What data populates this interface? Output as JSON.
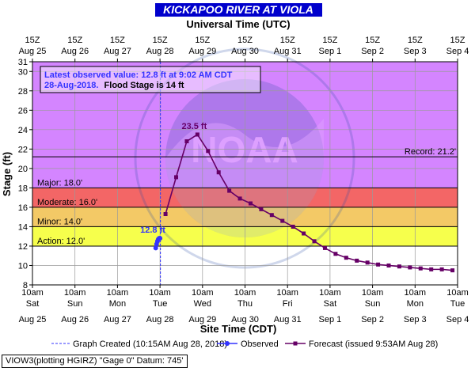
{
  "chart_data": {
    "type": "line",
    "title": "KICKAPOO RIVER AT VIOLA",
    "top_axis_label": "Universal Time (UTC)",
    "xlabel": "Site Time (CDT)",
    "ylabel": "Stage (ft)",
    "ylim": [
      8,
      31
    ],
    "y_ticks": [
      8,
      10,
      12,
      14,
      16,
      18,
      20,
      22,
      24,
      26,
      28,
      30,
      31
    ],
    "x_days": [
      {
        "time": "10am",
        "weekday": "Sat",
        "date": "Aug 25",
        "utc": "15Z",
        "utc_date": "Aug 25"
      },
      {
        "time": "10am",
        "weekday": "Sun",
        "date": "Aug 26",
        "utc": "15Z",
        "utc_date": "Aug 26"
      },
      {
        "time": "10am",
        "weekday": "Mon",
        "date": "Aug 27",
        "utc": "15Z",
        "utc_date": "Aug 27"
      },
      {
        "time": "10am",
        "weekday": "Tue",
        "date": "Aug 28",
        "utc": "15Z",
        "utc_date": "Aug 28"
      },
      {
        "time": "10am",
        "weekday": "Wed",
        "date": "Aug 29",
        "utc": "15Z",
        "utc_date": "Aug 29"
      },
      {
        "time": "10am",
        "weekday": "Thu",
        "date": "Aug 30",
        "utc": "15Z",
        "utc_date": "Aug 30"
      },
      {
        "time": "10am",
        "weekday": "Fri",
        "date": "Aug 31",
        "utc": "15Z",
        "utc_date": "Aug 31"
      },
      {
        "time": "10am",
        "weekday": "Sat",
        "date": "Sep 1",
        "utc": "15Z",
        "utc_date": "Sep 1"
      },
      {
        "time": "10am",
        "weekday": "Sun",
        "date": "Sep 2",
        "utc": "15Z",
        "utc_date": "Sep 2"
      },
      {
        "time": "10am",
        "weekday": "Mon",
        "date": "Sep 3",
        "utc": "15Z",
        "utc_date": "Sep 3"
      },
      {
        "time": "10am",
        "weekday": "Tue",
        "date": "Sep 4",
        "utc": "15Z",
        "utc_date": "Sep 4"
      }
    ],
    "thresholds": [
      {
        "name": "Action",
        "label": "Action: 12.0'",
        "value": 12.0,
        "color": "#ffff00"
      },
      {
        "name": "Minor",
        "label": "Minor: 14.0'",
        "value": 14.0,
        "color": "#ffa500"
      },
      {
        "name": "Moderate",
        "label": "Moderate: 16.0'",
        "value": 16.0,
        "color": "#ff0000"
      },
      {
        "name": "Major",
        "label": "Major: 18.0'",
        "value": 18.0,
        "color": "#cc33ff"
      },
      {
        "name": "Record",
        "label": "Record: 21.2'",
        "value": 21.2
      }
    ],
    "graph_created_day": 3.01,
    "series": [
      {
        "name": "Observed",
        "color": "#3333ff",
        "peak_label": "12.8 ft",
        "points": [
          [
            2.9,
            11.8
          ],
          [
            2.92,
            12.2
          ],
          [
            2.94,
            12.5
          ],
          [
            2.96,
            12.7
          ],
          [
            2.98,
            12.8
          ],
          [
            3.0,
            12.8
          ]
        ]
      },
      {
        "name": "Forecast",
        "color": "#660066",
        "peak_label": "23.5 ft",
        "points": [
          [
            3.13,
            15.3
          ],
          [
            3.38,
            19.1
          ],
          [
            3.63,
            22.8
          ],
          [
            3.88,
            23.5
          ],
          [
            4.13,
            21.8
          ],
          [
            4.38,
            19.6
          ],
          [
            4.63,
            17.7
          ],
          [
            4.88,
            16.9
          ],
          [
            5.13,
            16.4
          ],
          [
            5.38,
            15.8
          ],
          [
            5.63,
            15.2
          ],
          [
            5.88,
            14.6
          ],
          [
            6.13,
            14.0
          ],
          [
            6.38,
            13.3
          ],
          [
            6.63,
            12.5
          ],
          [
            6.88,
            11.8
          ],
          [
            7.13,
            11.2
          ],
          [
            7.38,
            10.8
          ],
          [
            7.63,
            10.5
          ],
          [
            7.88,
            10.3
          ],
          [
            8.13,
            10.1
          ],
          [
            8.38,
            10.0
          ],
          [
            8.63,
            9.9
          ],
          [
            8.88,
            9.8
          ],
          [
            9.13,
            9.7
          ],
          [
            9.38,
            9.6
          ],
          [
            9.63,
            9.6
          ],
          [
            9.88,
            9.5
          ]
        ]
      }
    ],
    "legend": {
      "graph_created": "Graph Created (10:15AM Aug 28, 2018)",
      "observed": "Observed",
      "forecast": "Forecast (issued 9:53AM Aug 28)"
    },
    "info_box": {
      "line1": "Latest observed value: 12.8 ft at 9:02 AM CDT",
      "line2_date": "28-Aug-2018.",
      "line2_rest": "Flood Stage is 14 ft"
    },
    "watermark": "NATIONAL OCEANIC AND ATMOSPHERIC ADMINISTRATION · U.S. DEPARTMENT OF COMMERCE · NOAA",
    "site_info": "VIOW3(plotting HGIRZ) \"Gage 0\" Datum: 745'",
    "colors": {
      "title_bg": "#0000cc",
      "title_text": "#ffffff",
      "background": "#e0ffff",
      "info_box_text": "#3333ff",
      "observed_label": "#3333ff",
      "forecast_label": "#660066"
    }
  }
}
